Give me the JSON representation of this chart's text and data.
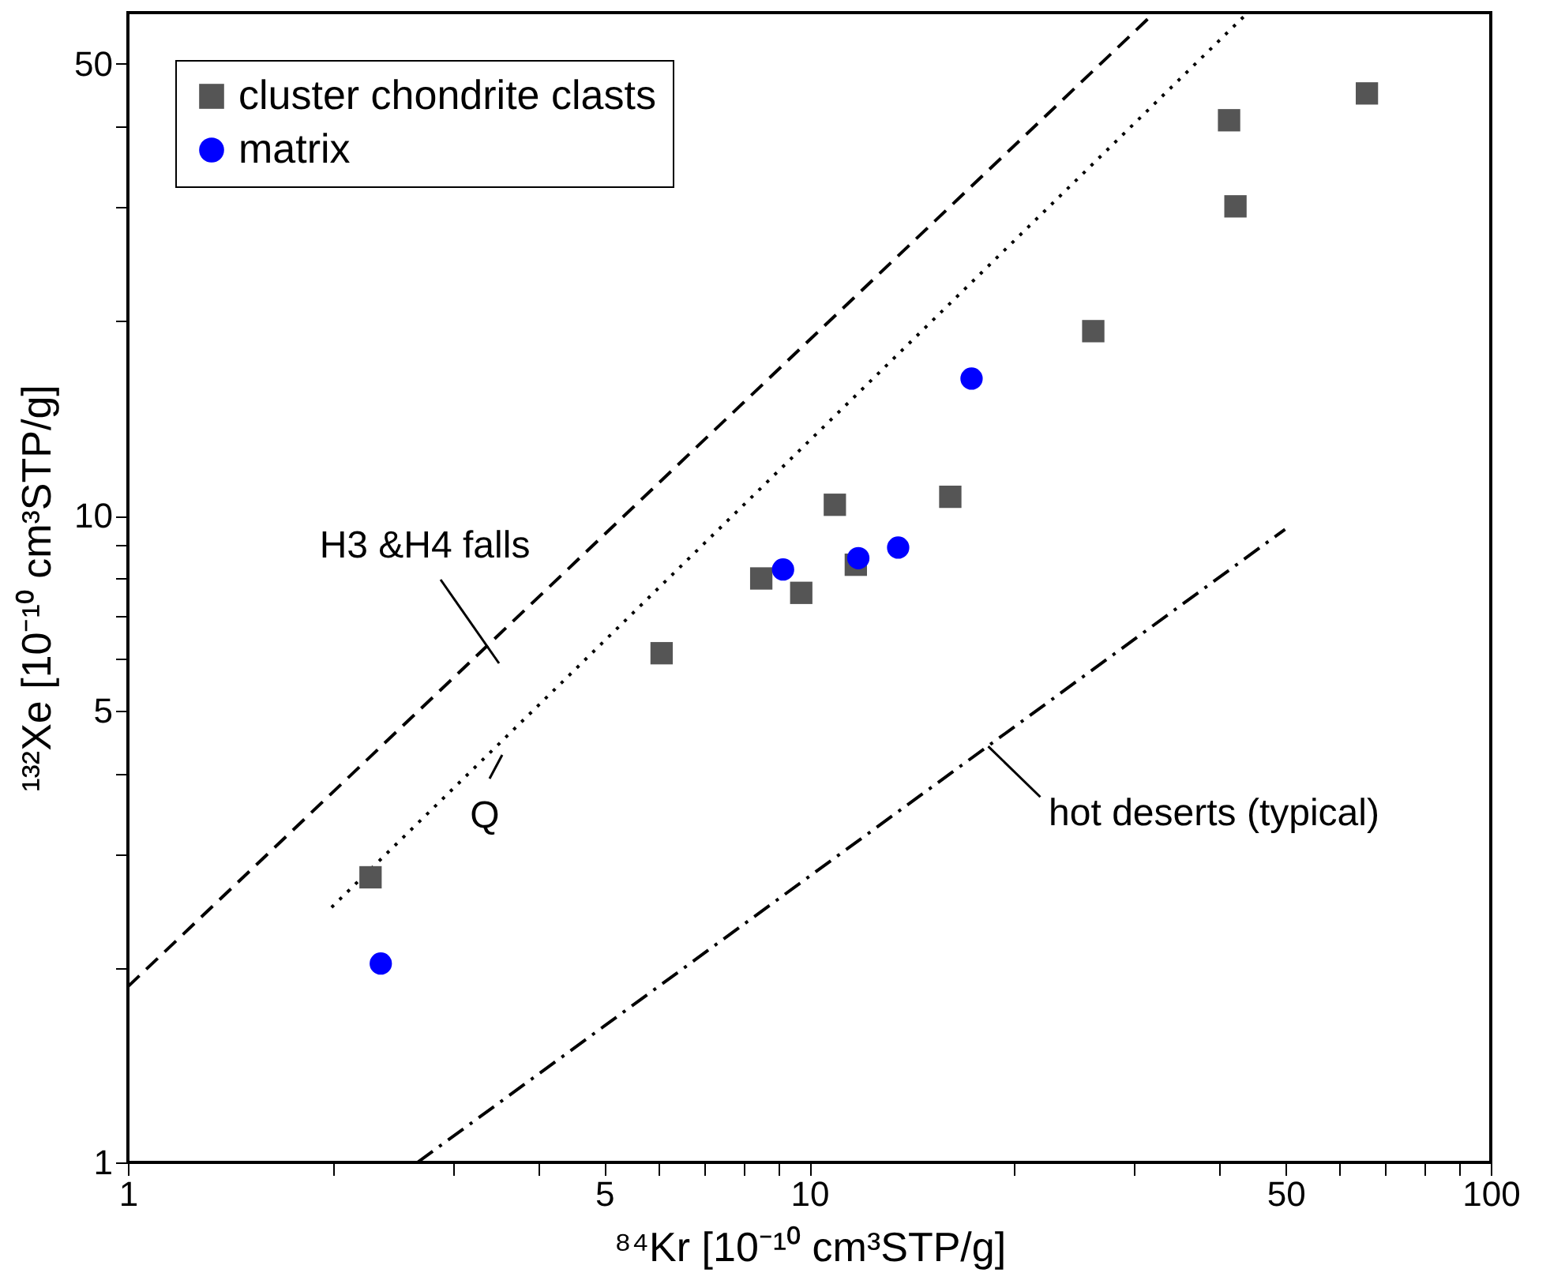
{
  "chart_data": {
    "type": "scatter",
    "xlabel": "⁸⁴Kr [10⁻¹⁰ cm³STP/g]",
    "ylabel": "¹³²Xe [10⁻¹⁰ cm³STP/g]",
    "log": "xy",
    "xlim": [
      1,
      100
    ],
    "ylim": [
      1,
      60
    ],
    "xticks": [
      1,
      {
        "value": 2,
        "label": null
      },
      {
        "value": 3,
        "label": null
      },
      {
        "value": 4,
        "label": null
      },
      5,
      {
        "value": 6,
        "label": null
      },
      {
        "value": 7,
        "label": null
      },
      {
        "value": 8,
        "label": null
      },
      {
        "value": 9,
        "label": null
      },
      10,
      {
        "value": 20,
        "label": null
      },
      {
        "value": 30,
        "label": null
      },
      {
        "value": 40,
        "label": null
      },
      50,
      {
        "value": 60,
        "label": null
      },
      {
        "value": 70,
        "label": null
      },
      {
        "value": 80,
        "label": null
      },
      {
        "value": 90,
        "label": null
      },
      100
    ],
    "yticks": [
      1,
      {
        "value": 2,
        "label": null
      },
      {
        "value": 3,
        "label": null
      },
      {
        "value": 4,
        "label": null
      },
      5,
      {
        "value": 6,
        "label": null
      },
      {
        "value": 7,
        "label": null
      },
      {
        "value": 8,
        "label": null
      },
      {
        "value": 9,
        "label": null
      },
      10,
      {
        "value": 20,
        "label": null
      },
      {
        "value": 30,
        "label": null
      },
      {
        "value": 40,
        "label": null
      },
      50
    ],
    "grid": false,
    "legend": "top left",
    "series": [
      {
        "name": "cluster chondrite clasts",
        "type": "scatter",
        "marker": "square",
        "color": "#555555",
        "x": [
          2.27,
          6.07,
          8.5,
          9.73,
          10.9,
          11.7,
          16.1,
          26.1,
          41.3,
          42.2,
          65.8
        ],
        "values": [
          2.76,
          6.13,
          8.0,
          7.6,
          10.4,
          8.4,
          10.7,
          19.3,
          40.9,
          30.1,
          45.0
        ]
      },
      {
        "name": "matrix",
        "type": "scatter",
        "marker": "circle",
        "color": "#0000ff",
        "x": [
          2.35,
          9.15,
          11.8,
          13.5,
          17.3
        ],
        "values": [
          2.03,
          8.26,
          8.6,
          8.93,
          16.3
        ]
      },
      {
        "type": "line",
        "line_style": "dashed",
        "color": "#000000",
        "x": [
          1,
          32.1
        ],
        "values": [
          1.87,
          60
        ]
      },
      {
        "type": "line",
        "line_style": "dotted",
        "color": "#000000",
        "x": [
          1.99,
          44
        ],
        "values": [
          2.48,
          60
        ]
      },
      {
        "type": "line",
        "line_style": "dashdot",
        "color": "#000000",
        "x": [
          2.66,
          49.9
        ],
        "values": [
          1,
          9.53
        ]
      }
    ],
    "annotations": [
      "H3 &H4 falls",
      "Q",
      {
        "text": "hot deserts (typical)",
        "x": 18.3,
        "y": 4.4
      }
    ]
  }
}
